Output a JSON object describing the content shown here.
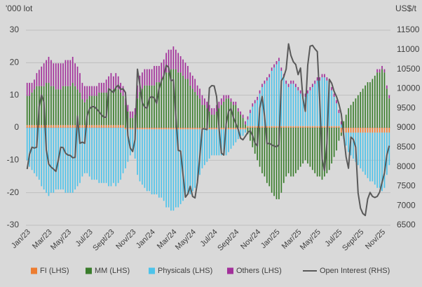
{
  "chart_data": {
    "type": "bar",
    "stacked": true,
    "y_axis_label": "'000 lot",
    "y2_axis_label": "US$/t",
    "ylim": [
      -30,
      30
    ],
    "yticks": [
      -30,
      -20,
      -10,
      0,
      10,
      20,
      30
    ],
    "y2lim": [
      6500,
      11500
    ],
    "y2ticks": [
      6500,
      7000,
      7500,
      8000,
      8500,
      9000,
      9500,
      10000,
      10500,
      11000,
      11500
    ],
    "grid": true,
    "legend": "bottom",
    "categories": [
      "Jan/23",
      null,
      null,
      null,
      null,
      null,
      null,
      null,
      null,
      "Mar/23",
      null,
      null,
      null,
      null,
      null,
      null,
      null,
      "May/23",
      null,
      null,
      null,
      null,
      null,
      null,
      null,
      null,
      "Jul/23",
      null,
      null,
      null,
      null,
      null,
      null,
      null,
      null,
      "Sept/23",
      null,
      null,
      null,
      null,
      null,
      null,
      null,
      null,
      "Nov/23",
      null,
      null,
      null,
      null,
      null,
      null,
      null,
      "Jan/24",
      null,
      null,
      null,
      null,
      null,
      null,
      null,
      null,
      "Mar/24",
      null,
      null,
      null,
      null,
      null,
      null,
      null,
      "May/24",
      null,
      null,
      null,
      null,
      null,
      null,
      null,
      null,
      "Jul/24",
      null,
      null,
      null,
      null,
      null,
      null,
      null,
      null,
      "Sept/24",
      null,
      null,
      null,
      null,
      null,
      null,
      null,
      null,
      "Nov/24",
      null,
      null,
      null,
      null,
      null,
      null,
      null,
      "Jan/25",
      null,
      null,
      null,
      null,
      null,
      null,
      null,
      null,
      "Mar/25",
      null,
      null,
      null,
      null,
      null,
      null,
      null,
      "May/25",
      null,
      null,
      null,
      null,
      null,
      null,
      null,
      null,
      "Jul/25",
      null,
      null,
      null,
      null,
      null,
      null,
      null,
      null,
      "Sept/25",
      null,
      null,
      null,
      null,
      null,
      null,
      null,
      null,
      "Nov/25",
      null,
      null,
      null
    ],
    "series": [
      {
        "name": "FI (LHS)",
        "color": "#ed7d31",
        "values": [
          0.8,
          0.8,
          0.8,
          0.8,
          0.8,
          0.8,
          0.8,
          0.8,
          0.8,
          0.8,
          0.8,
          0.8,
          0.8,
          0.8,
          0.8,
          0.8,
          0.8,
          0.8,
          0.8,
          0.8,
          0.8,
          0.8,
          0.8,
          0.8,
          0.8,
          0.8,
          0.8,
          0.8,
          0.8,
          0.8,
          0.8,
          0.8,
          0.8,
          0.8,
          0.8,
          0.8,
          0.8,
          0.8,
          0.8,
          0.8,
          0.8,
          -0.5,
          -0.5,
          -0.5,
          -0.5,
          -0.5,
          -0.5,
          -0.5,
          -0.5,
          -0.5,
          -0.5,
          -0.5,
          -0.5,
          -0.5,
          -0.5,
          -0.5,
          -0.5,
          -0.5,
          -0.5,
          -0.5,
          -0.5,
          -0.5,
          -0.5,
          -0.5,
          -0.5,
          -0.5,
          -0.5,
          -0.5,
          -0.5,
          -0.5,
          -0.5,
          -0.5,
          -0.5,
          -0.5,
          -0.5,
          -0.5,
          -0.5,
          -0.5,
          -0.5,
          -0.5,
          -0.5,
          -0.5,
          -0.5,
          -0.5,
          -0.5,
          -0.5,
          -0.5,
          -0.5,
          -0.5,
          -0.5,
          -0.5,
          -0.5,
          0.5,
          0.5,
          0.5,
          0.5,
          0.5,
          0.5,
          0.5,
          0.5,
          0.5,
          0.5,
          0.5,
          0.5,
          0.5,
          0.5,
          0.5,
          0.5,
          0.5,
          0.5,
          0.5,
          0.5,
          0.5,
          0.5,
          0.5,
          0.5,
          0.5,
          0.5,
          0.5,
          0.5,
          0.5,
          0.5,
          0.5,
          0.5,
          0.5,
          0.5,
          0.5,
          0.5,
          0.5,
          0.5,
          0.5,
          -1.5,
          -1.5,
          -1.5,
          -1.5,
          -1.5,
          -1.5,
          -1.5,
          -1.5,
          -1.5,
          -1.5,
          -1.5,
          -1.5,
          -1.5,
          -1.5,
          -1.5,
          -1.5,
          -1.5,
          -1.5,
          -1.5,
          -1.5,
          -1.5
        ]
      },
      {
        "name": "MM (LHS)",
        "color": "#3a7d2c",
        "values": [
          9,
          9,
          10,
          11,
          12,
          12,
          12,
          12,
          13,
          13,
          12,
          12,
          11,
          11,
          11,
          12,
          12,
          12,
          12,
          13,
          12,
          11,
          10,
          8,
          7,
          8,
          9,
          9,
          9,
          9,
          10,
          10,
          10,
          10,
          11,
          11,
          11,
          12,
          11,
          10,
          9,
          7,
          5,
          3,
          3,
          4,
          9,
          11,
          12,
          13,
          13,
          13,
          13,
          13,
          14,
          14,
          15,
          16,
          17,
          17,
          18,
          18,
          18,
          17,
          17,
          16,
          15,
          15,
          13,
          12,
          11,
          10,
          9,
          7,
          7,
          6,
          5,
          4,
          4,
          5,
          6,
          7,
          8,
          9,
          9,
          8,
          7,
          7,
          5,
          4,
          3,
          1,
          -2,
          -4,
          -6,
          -8,
          -10,
          -12,
          -14,
          -15,
          -17,
          -18,
          -20,
          -21,
          -22,
          -22,
          -20,
          -17,
          -15,
          -14,
          -15,
          -15,
          -14,
          -13,
          -12,
          -11,
          -10,
          -11,
          -12,
          -13,
          -14,
          -15,
          -15,
          -16,
          -15,
          -14,
          -13,
          -11,
          -9,
          -7,
          -4,
          -1,
          2,
          4,
          6,
          7,
          8,
          9,
          10,
          11,
          12,
          13,
          14,
          14,
          15,
          16,
          17,
          17,
          18,
          17,
          12,
          9
        ]
      },
      {
        "name": "Physicals (LHS)",
        "color": "#4dc3ea",
        "values": [
          -10,
          -12,
          -13,
          -14,
          -15,
          -16,
          -18,
          -19,
          -20,
          -21,
          -20,
          -20,
          -19,
          -19,
          -19,
          -19,
          -20,
          -20,
          -20,
          -20,
          -19,
          -18,
          -17,
          -15,
          -14,
          -14,
          -15,
          -16,
          -16,
          -16,
          -17,
          -17,
          -17,
          -17,
          -18,
          -18,
          -17,
          -18,
          -17,
          -16,
          -14,
          -12,
          -10,
          -8,
          -7,
          -9,
          -14,
          -16,
          -17,
          -18,
          -19,
          -19,
          -20,
          -20,
          -20,
          -21,
          -21,
          -22,
          -24,
          -24,
          -25,
          -25,
          -24,
          -24,
          -23,
          -22,
          -21,
          -20,
          -20,
          -19,
          -18,
          -16,
          -14,
          -12,
          -11,
          -10,
          -9,
          -8,
          -8,
          -8,
          -8,
          -8,
          -8,
          -8,
          -7,
          -6,
          -5,
          -4,
          -3,
          -2,
          -2,
          -1,
          2,
          4,
          6,
          7,
          8,
          10,
          12,
          13,
          14,
          15,
          17,
          18,
          19,
          20,
          17,
          15,
          13,
          12,
          13,
          13,
          12,
          11,
          10,
          9,
          9,
          10,
          11,
          12,
          13,
          14,
          14,
          15,
          15,
          14,
          13,
          11,
          9,
          7,
          4,
          1,
          -2,
          -4,
          -6,
          -7,
          -8,
          -9,
          -10,
          -11,
          -12,
          -13,
          -14,
          -15,
          -15,
          -16,
          -17,
          -17,
          -18,
          -17,
          -13,
          -10
        ]
      },
      {
        "name": "Others (LHS)",
        "color": "#a2309a",
        "values": [
          4,
          4,
          3,
          3,
          4,
          5,
          6,
          7,
          7,
          8,
          8,
          7,
          8,
          8,
          8,
          7,
          8,
          8,
          8,
          8,
          7,
          7,
          6,
          5,
          5,
          4,
          3,
          3,
          3,
          3,
          3,
          3,
          3,
          4,
          4,
          5,
          4,
          4,
          4,
          3,
          3,
          2,
          2,
          2,
          2,
          2,
          4,
          5,
          5,
          5,
          5,
          5,
          5,
          6,
          5,
          5,
          5,
          5,
          6,
          7,
          6,
          7,
          6,
          6,
          5,
          5,
          5,
          4,
          4,
          4,
          4,
          3,
          3,
          3,
          2,
          2,
          2,
          2,
          2,
          2,
          2,
          2,
          2,
          1,
          1,
          1,
          1,
          1,
          1,
          1,
          1,
          1,
          1,
          1,
          1,
          1,
          1,
          1,
          1,
          1,
          1,
          1,
          1,
          1,
          1,
          1,
          1,
          1,
          1,
          1,
          1,
          1,
          1,
          1,
          1,
          1,
          1,
          1,
          1,
          1,
          1,
          1,
          1,
          1,
          1,
          1,
          1,
          1,
          1,
          1,
          1,
          1,
          0,
          0,
          0,
          0,
          0,
          0,
          0,
          0,
          0,
          0,
          0,
          0,
          0,
          0,
          1,
          1,
          1,
          1,
          1,
          1
        ]
      },
      {
        "name": "Open Interest (RHS)",
        "type": "line",
        "axis": "y2",
        "color": "#595959",
        "values": [
          7940,
          8320,
          8500,
          8480,
          8500,
          9540,
          9840,
          9660,
          8430,
          8070,
          7990,
          7940,
          7880,
          8170,
          8500,
          8490,
          8350,
          8300,
          8290,
          8230,
          8240,
          9300,
          8600,
          8630,
          8600,
          9300,
          9480,
          9540,
          9540,
          9480,
          9410,
          9330,
          9270,
          9270,
          10000,
          9950,
          9900,
          10030,
          10090,
          9980,
          10000,
          9900,
          8800,
          8480,
          8390,
          8700,
          10500,
          10100,
          9640,
          9530,
          9500,
          9760,
          9800,
          9760,
          9620,
          10000,
          10200,
          10330,
          10600,
          10550,
          10200,
          10230,
          9300,
          8420,
          8400,
          7800,
          7220,
          7300,
          7500,
          7240,
          7200,
          7600,
          8260,
          8970,
          8970,
          8950,
          10020,
          10080,
          10070,
          9800,
          9000,
          8350,
          8300,
          9100,
          9420,
          9490,
          9260,
          9110,
          8960,
          8730,
          8690,
          8780,
          8880,
          8920,
          8800,
          8610,
          8530,
          9500,
          9800,
          9300,
          8590,
          8600,
          8560,
          8530,
          8510,
          8560,
          10200,
          10300,
          10500,
          11150,
          10850,
          10690,
          10620,
          10360,
          10530,
          9750,
          9420,
          10600,
          11090,
          11110,
          11020,
          10950,
          9700,
          8200,
          7900,
          8600,
          10240,
          10140,
          9930,
          9800,
          9610,
          9350,
          8800,
          8250,
          7960,
          8760,
          8700,
          8500,
          7330,
          6940,
          6800,
          6750,
          7170,
          7340,
          7240,
          7210,
          7240,
          7350,
          7600,
          7840,
          8300,
          8540
        ]
      }
    ]
  }
}
